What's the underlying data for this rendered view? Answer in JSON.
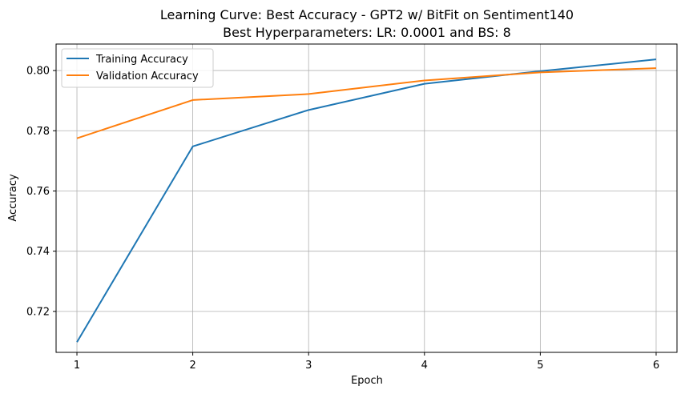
{
  "chart_data": {
    "type": "line",
    "title": "Learning Curve: Best Accuracy - GPT2 w/ BitFit on Sentiment140",
    "subtitle": "Best Hyperparameters: LR: 0.0001 and BS: 8",
    "xlabel": "Epoch",
    "ylabel": "Accuracy",
    "x": [
      1,
      2,
      3,
      4,
      5,
      6
    ],
    "xticks": [
      "1",
      "2",
      "3",
      "4",
      "5",
      "6"
    ],
    "yticks": [
      "0.72",
      "0.74",
      "0.76",
      "0.78",
      "0.80"
    ],
    "xlim": [
      0.82,
      6.18
    ],
    "ylim": [
      0.7064,
      0.8088
    ],
    "grid": true,
    "legend_position": "upper-left",
    "series": [
      {
        "name": "Training Accuracy",
        "color": "#1f77b4",
        "values": [
          0.7098,
          0.7748,
          0.7869,
          0.7956,
          0.7998,
          0.8037
        ]
      },
      {
        "name": "Validation Accuracy",
        "color": "#ff7f0e",
        "values": [
          0.7775,
          0.7902,
          0.7922,
          0.7967,
          0.7994,
          0.8008
        ]
      }
    ]
  }
}
